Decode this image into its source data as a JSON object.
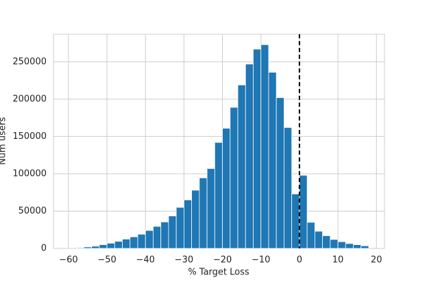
{
  "chart_data": {
    "type": "histogram",
    "xlabel": "% Target Loss",
    "ylabel": "Num users",
    "bins": [
      -58,
      -56,
      -54,
      -52,
      -50,
      -48,
      -46,
      -44,
      -42,
      -40,
      -38,
      -36,
      -34,
      -32,
      -30,
      -28,
      -26,
      -24,
      -22,
      -20,
      -18,
      -16,
      -14,
      -12,
      -10,
      -8,
      -6,
      -4,
      -2,
      0,
      2,
      4,
      6,
      8,
      10,
      12,
      14,
      16,
      18
    ],
    "values": [
      1000,
      2000,
      3000,
      5000,
      7000,
      9500,
      12500,
      15500,
      19000,
      24000,
      29500,
      35500,
      43500,
      55000,
      65000,
      78000,
      94500,
      107000,
      142000,
      161000,
      189000,
      219000,
      247000,
      267000,
      273000,
      236000,
      202000,
      162000,
      73000,
      98000,
      35000,
      23000,
      17000,
      12000,
      9000,
      6500,
      5000,
      3500
    ],
    "color": "#1f77b4",
    "xlim": [
      -63.9,
      22.1
    ],
    "ylim": [
      0,
      287000
    ],
    "xticks": [
      {
        "value": -60,
        "label": "−60"
      },
      {
        "value": -50,
        "label": "−50"
      },
      {
        "value": -40,
        "label": "−40"
      },
      {
        "value": -30,
        "label": "−30"
      },
      {
        "value": -20,
        "label": "−20"
      },
      {
        "value": -10,
        "label": "−10"
      },
      0,
      10,
      20
    ],
    "yticks": [
      0,
      50000,
      100000,
      150000,
      200000,
      250000
    ],
    "grid": true,
    "vline_x": 0
  }
}
